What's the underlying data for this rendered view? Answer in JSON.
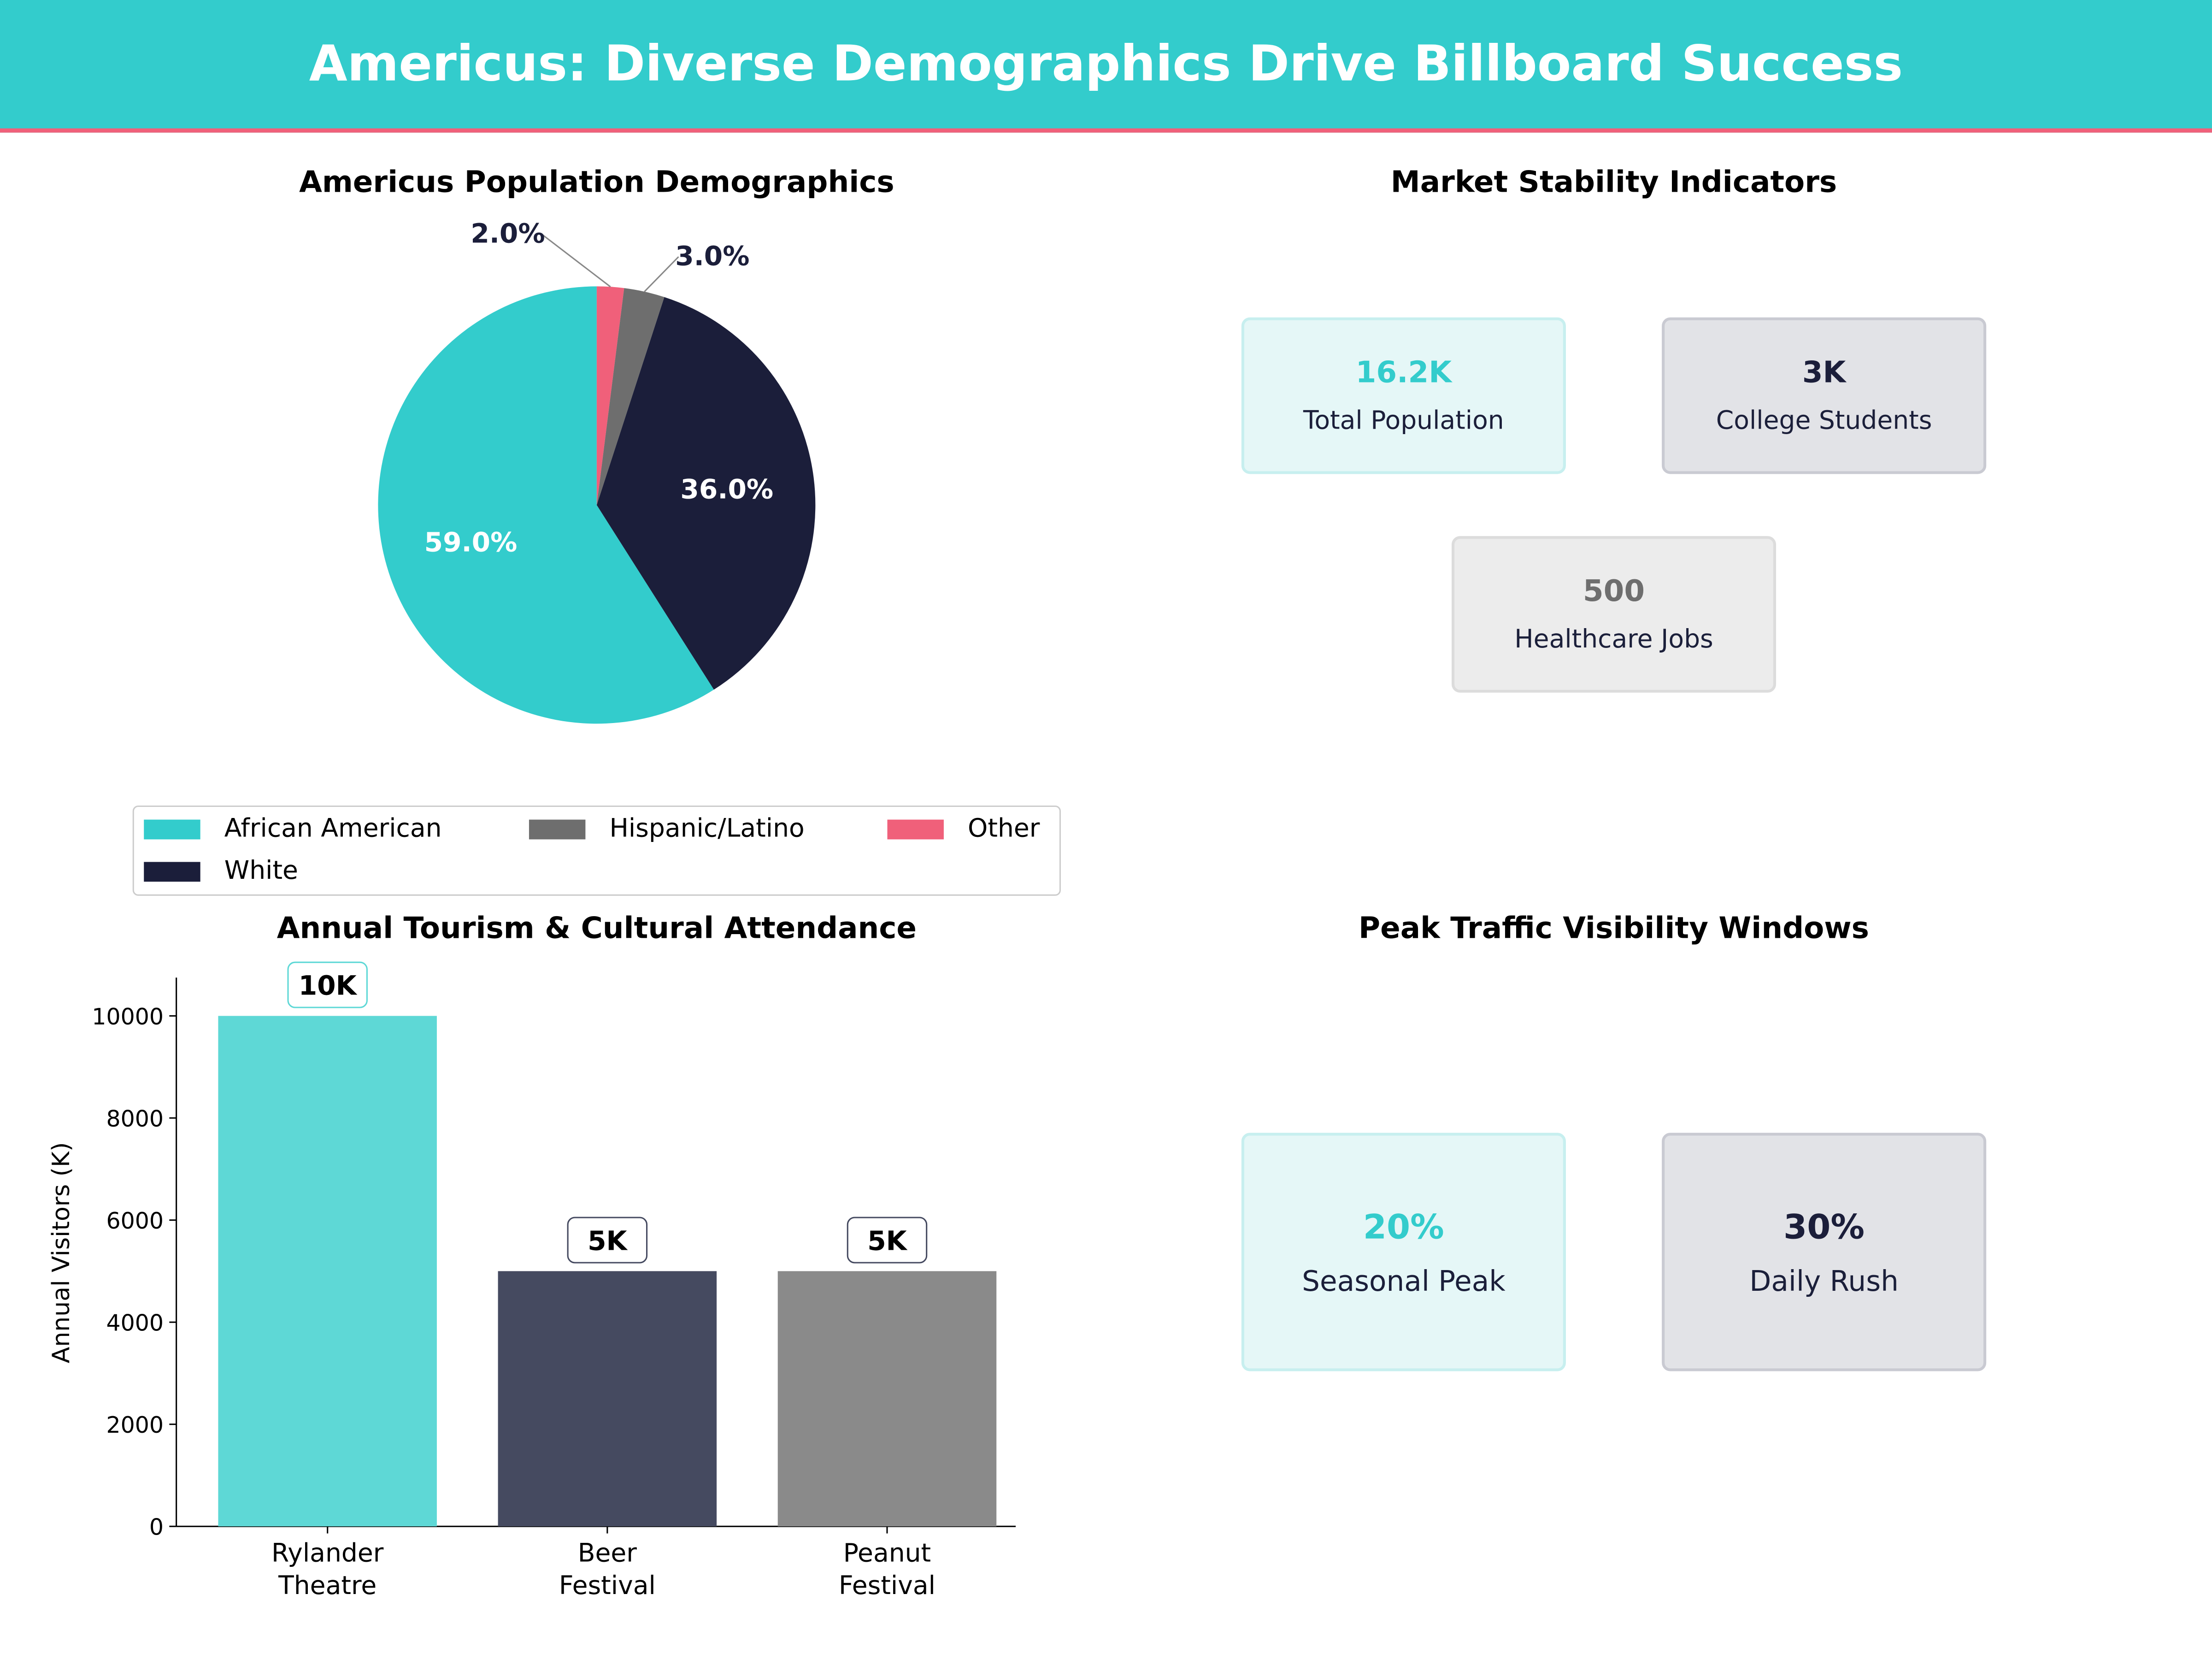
{
  "header": {
    "title": "Americus: Diverse Demographics Drive Billboard Success"
  },
  "colors": {
    "teal": "#33cccc",
    "navy": "#1b1e3a",
    "gray": "#6e6e6e",
    "red": "#f0607a"
  },
  "chart_data": [
    {
      "type": "pie",
      "title": "Americus Population Demographics",
      "labels": [
        "African American",
        "White",
        "Hispanic/Latino",
        "Other"
      ],
      "values": [
        59.0,
        36.0,
        3.0,
        2.0
      ],
      "data_labels": [
        "59.0%",
        "36.0%",
        "3.0%",
        "2.0%"
      ],
      "colors": [
        "#33cccc",
        "#1b1e3a",
        "#6e6e6e",
        "#f0607a"
      ],
      "legend": "bottom"
    },
    {
      "type": "bar",
      "title": "Annual Tourism & Cultural Attendance",
      "categories": [
        "Rylander\nTheatre",
        "Beer\nFestival",
        "Peanut\nFestival"
      ],
      "category_lines": [
        [
          "Rylander",
          "Theatre"
        ],
        [
          "Beer",
          "Festival"
        ],
        [
          "Peanut",
          "Festival"
        ]
      ],
      "values": [
        10000,
        5000,
        5000
      ],
      "data_labels": [
        "10K",
        "5K",
        "5K"
      ],
      "colors": [
        "#5ed8d6",
        "#454a60",
        "#8a8a8a"
      ],
      "ylabel": "Annual Visitors (K)",
      "ylim": [
        0,
        10750
      ],
      "yticks": [
        "0",
        "2000",
        "4000",
        "6000",
        "8000",
        "10000"
      ]
    }
  ],
  "market": {
    "title": "Market Stability Indicators",
    "cards": [
      {
        "value": "16.2K",
        "label": "Total Population",
        "color": "#33cccc"
      },
      {
        "value": "3K",
        "label": "College Students",
        "color": "#1b1e3a"
      },
      {
        "value": "500",
        "label": "Healthcare Jobs",
        "color": "#6e6e6e"
      }
    ]
  },
  "traffic": {
    "title": "Peak Traffic Visibility Windows",
    "cards": [
      {
        "value": "20%",
        "label": "Seasonal Peak",
        "color": "#33cccc"
      },
      {
        "value": "30%",
        "label": "Daily Rush",
        "color": "#1b1e3a"
      }
    ]
  }
}
